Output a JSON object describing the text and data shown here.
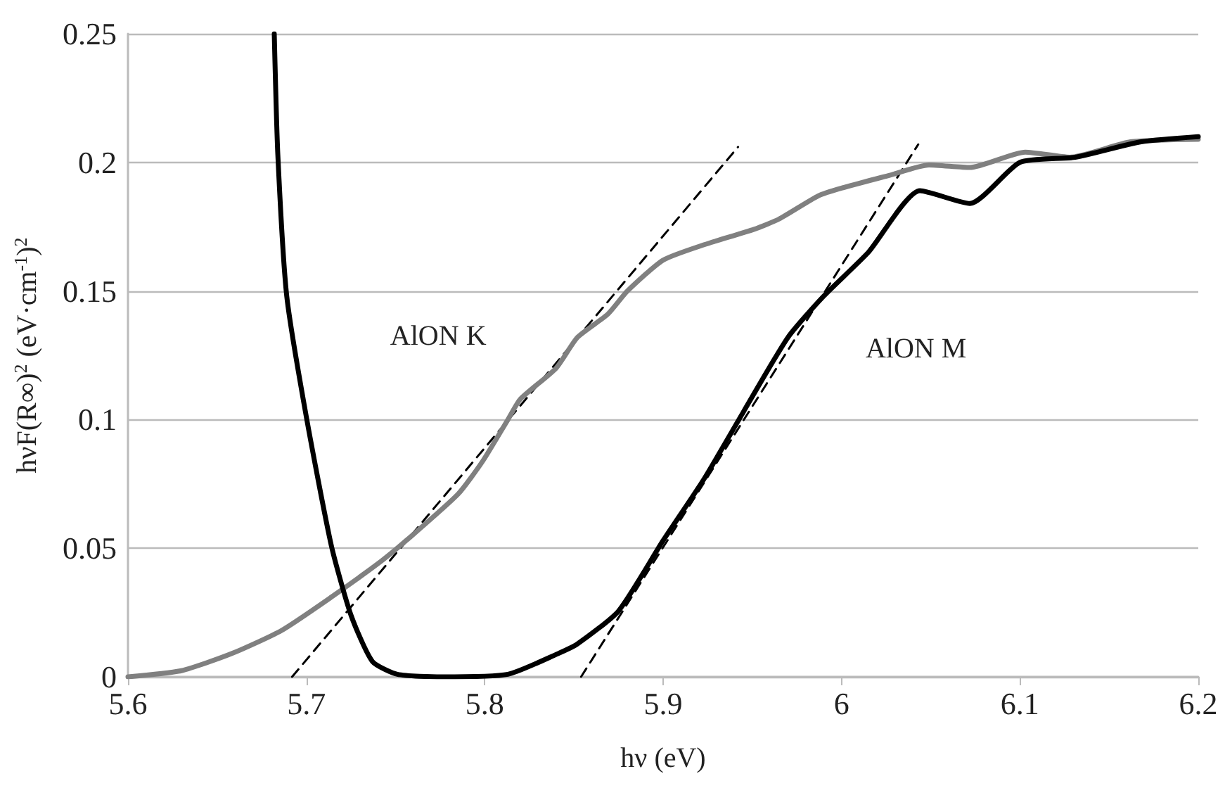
{
  "chart_data": {
    "type": "line",
    "xlabel": "hν (eV)",
    "ylabel": "hνF(R∞)$^{2}$ (eV·cm$^{-1}$)$^{2}$",
    "xlim": [
      5.6,
      6.2
    ],
    "xticks": [
      5.6,
      5.7,
      5.8,
      5.9,
      6,
      6.1,
      6.2
    ],
    "ylim": [
      0,
      0.25
    ],
    "yticks": [
      0,
      0.05,
      0.1,
      0.15,
      0.2,
      0.25
    ],
    "grid": "y",
    "marker": "none",
    "line_style": "solid",
    "annotations": [
      "AlON K",
      "AlON M"
    ],
    "series": [
      {
        "color": "#808080",
        "x": [
          5.6,
          5.63,
          5.658,
          5.686,
          5.714,
          5.742,
          5.756,
          5.785,
          5.799,
          5.813,
          5.82,
          5.84,
          5.852,
          5.869,
          5.88,
          5.9,
          5.923,
          5.951,
          5.965,
          5.987,
          6.0,
          6.027,
          6.049,
          6.072,
          6.103,
          6.128,
          6.162,
          6.2
        ],
        "values": [
          0.0,
          0.0024,
          0.009,
          0.018,
          0.031,
          0.045,
          0.053,
          0.071,
          0.084,
          0.1,
          0.108,
          0.12,
          0.132,
          0.141,
          0.15,
          0.162,
          0.168,
          0.174,
          0.178,
          0.187,
          0.19,
          0.195,
          0.199,
          0.198,
          0.204,
          0.202,
          0.208,
          0.209
        ]
      },
      {
        "color": "#000000",
        "x": [
          5.682,
          5.684,
          5.689,
          5.7,
          5.714,
          5.725,
          5.737,
          5.751,
          5.776,
          5.813,
          5.841,
          5.852,
          5.875,
          5.9,
          5.923,
          5.945,
          5.97,
          5.99,
          6.015,
          6.044,
          6.072,
          6.1,
          6.131,
          6.168,
          6.2
        ],
        "values": [
          0.25,
          0.203,
          0.148,
          0.101,
          0.051,
          0.024,
          0.006,
          0.001,
          0.0,
          0.001,
          0.009,
          0.0128,
          0.0256,
          0.053,
          0.077,
          0.103,
          0.132,
          0.148,
          0.165,
          0.189,
          0.184,
          0.2,
          0.202,
          0.208,
          0.21
        ]
      },
      {
        "color": "#000000",
        "line_style": "dashed",
        "x": [
          5.692,
          5.942
        ],
        "values": [
          0,
          0.206
        ]
      },
      {
        "color": "#000000",
        "line_style": "dashed",
        "x": [
          5.854,
          6.043
        ],
        "values": [
          0,
          0.207
        ]
      }
    ]
  }
}
